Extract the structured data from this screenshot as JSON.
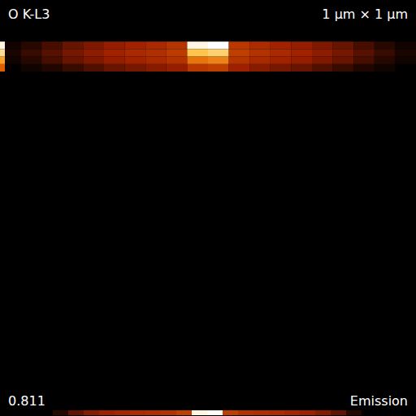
{
  "chart_data": {
    "type": "heatmap",
    "title": "O K-L3",
    "annotations": [
      "1 µm × 1 µm"
    ],
    "xlim": [
      0,
      1
    ],
    "ylim": [
      0,
      1
    ],
    "tick_labels": false,
    "x_bins": [
      0,
      0.05,
      0.1,
      0.15,
      0.2,
      0.25,
      0.3,
      0.35,
      0.4,
      0.45,
      0.5,
      0.55,
      0.6,
      0.65,
      0.7,
      0.75,
      0.8,
      0.85,
      0.9,
      0.95,
      1
    ],
    "y_bins": [
      0.1,
      0.118,
      0.136,
      0.154,
      0.172
    ],
    "cells": [
      [
        0.02,
        0.05,
        0.09,
        0.13,
        0.16,
        0.19,
        0.21,
        0.23,
        0.27,
        0.78,
        0.811,
        0.28,
        0.24,
        0.21,
        0.19,
        0.16,
        0.13,
        0.09,
        0.05,
        0.02
      ],
      [
        0.03,
        0.07,
        0.11,
        0.15,
        0.18,
        0.21,
        0.23,
        0.25,
        0.29,
        0.62,
        0.66,
        0.3,
        0.26,
        0.23,
        0.21,
        0.18,
        0.15,
        0.11,
        0.07,
        0.03
      ],
      [
        0.02,
        0.05,
        0.09,
        0.13,
        0.16,
        0.19,
        0.21,
        0.23,
        0.26,
        0.45,
        0.48,
        0.27,
        0.23,
        0.21,
        0.19,
        0.16,
        0.13,
        0.09,
        0.05,
        0.02
      ],
      [
        0,
        0.02,
        0.04,
        0.07,
        0.1,
        0.13,
        0.15,
        0.17,
        0.19,
        0.28,
        0.3,
        0.2,
        0.17,
        0.15,
        0.13,
        0.1,
        0.07,
        0.04,
        0.02,
        0
      ]
    ],
    "x_profile": [
      0.05,
      0.12,
      0.17,
      0.2,
      0.22,
      0.24,
      0.25,
      0.26,
      0.3,
      0.78,
      0.8,
      0.3,
      0.26,
      0.25,
      0.24,
      0.22,
      0.2,
      0.17,
      0.12,
      0.05
    ],
    "y_profile": [
      0.78,
      0.7,
      0.55,
      0.4
    ],
    "color_range": [
      0,
      0.811
    ],
    "color_ticks": [
      0.811
    ],
    "color_label": "Emission"
  }
}
